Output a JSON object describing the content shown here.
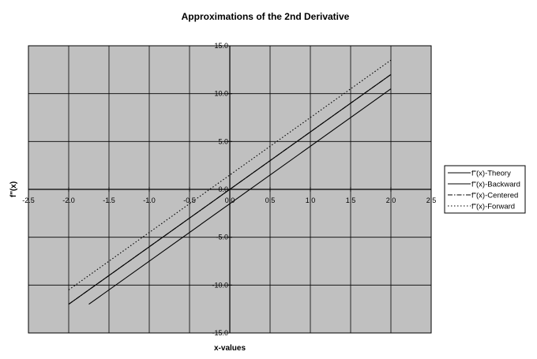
{
  "chart_data": {
    "type": "line",
    "title": "Approximations of the 2nd Derivative",
    "xlabel": "x-values",
    "ylabel": "f\"(x)",
    "xlim": [
      -2.5,
      2.5
    ],
    "ylim": [
      -15.0,
      15.0
    ],
    "x_ticks": [
      -2.5,
      -2.0,
      -1.5,
      -1.0,
      -0.5,
      0.0,
      0.5,
      1.0,
      1.5,
      2.0,
      2.5
    ],
    "x_tick_labels": [
      "-2.5",
      "-2.0",
      "-1.5",
      "-1.0",
      "-0.5",
      "0.0",
      "0.5",
      "1.0",
      "1.5",
      "2.0",
      "2.5"
    ],
    "y_ticks": [
      -15.0,
      -10.0,
      -5.0,
      0.0,
      5.0,
      10.0,
      15.0
    ],
    "y_tick_labels": [
      "-15.0",
      "-10.0",
      "-5.0",
      "0.0",
      "5.0",
      "10.0",
      "15.0"
    ],
    "grid": true,
    "plot_background": "#c0c0c0",
    "legend_position": "right",
    "series": [
      {
        "name": "f\"(x)-Theory",
        "dash": "solid",
        "x": [
          -2.0,
          2.0
        ],
        "y": [
          -12.0,
          12.0
        ]
      },
      {
        "name": "f\"(x)-Backward",
        "dash": "solid",
        "x": [
          -1.75,
          2.0
        ],
        "y": [
          -12.0,
          10.5
        ]
      },
      {
        "name": "f\"(x)-Centered",
        "dash": "dashdot",
        "x": [
          -2.0,
          2.0
        ],
        "y": [
          -12.0,
          12.0
        ]
      },
      {
        "name": "f\"(x)-Forward",
        "dash": "dotted",
        "x": [
          -2.0,
          2.0
        ],
        "y": [
          -10.5,
          13.5
        ]
      }
    ]
  }
}
